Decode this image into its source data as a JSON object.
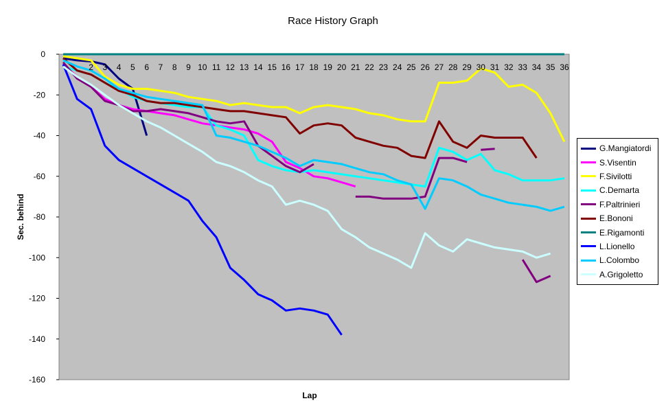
{
  "chart_data": {
    "type": "line",
    "title": "Race History Graph",
    "xlabel": "Lap",
    "ylabel": "Sec. behind",
    "ylim": [
      -160,
      0
    ],
    "xlim": [
      0,
      36
    ],
    "yticks": [
      0,
      -20,
      -40,
      -60,
      -80,
      -100,
      -120,
      -140,
      -160
    ],
    "xticks": [
      2,
      3,
      4,
      5,
      6,
      7,
      8,
      9,
      10,
      11,
      12,
      13,
      14,
      15,
      16,
      17,
      18,
      19,
      20,
      21,
      22,
      23,
      24,
      25,
      26,
      27,
      28,
      29,
      30,
      31,
      32,
      33,
      34,
      35,
      36
    ],
    "grid": false,
    "plot_background": "#c0c0c0",
    "legend_position": "right",
    "series": [
      {
        "name": "G.Mangiatordi",
        "color": "#000080",
        "points": [
          [
            0,
            -2
          ],
          [
            1,
            -3
          ],
          [
            2,
            -3.5
          ],
          [
            3,
            -5
          ],
          [
            4,
            -12
          ],
          [
            5,
            -17
          ],
          [
            6,
            -40
          ]
        ]
      },
      {
        "name": "S.Visentin",
        "color": "#ff00ff",
        "points": [
          [
            0,
            -5
          ],
          [
            1,
            -11
          ],
          [
            2,
            -16
          ],
          [
            3,
            -22
          ],
          [
            4,
            -25
          ],
          [
            5,
            -27
          ],
          [
            6,
            -28
          ],
          [
            7,
            -29
          ],
          [
            8,
            -30
          ],
          [
            9,
            -32
          ],
          [
            10,
            -34
          ],
          [
            11,
            -35
          ],
          [
            12,
            -36
          ],
          [
            13,
            -37
          ],
          [
            14,
            -39
          ],
          [
            15,
            -43
          ],
          [
            16,
            -53
          ],
          [
            17,
            -56
          ],
          [
            18,
            -60
          ],
          [
            19,
            -61
          ],
          [
            20,
            -63
          ],
          [
            21,
            -65
          ]
        ]
      },
      {
        "name": "F.Sivilotti",
        "color": "#ffff00",
        "points": [
          [
            0,
            -1
          ],
          [
            1,
            -2
          ],
          [
            2,
            -3
          ],
          [
            3,
            -11
          ],
          [
            4,
            -15
          ],
          [
            5,
            -17
          ],
          [
            6,
            -17
          ],
          [
            7,
            -18
          ],
          [
            8,
            -19
          ],
          [
            9,
            -21
          ],
          [
            10,
            -22
          ],
          [
            11,
            -23
          ],
          [
            12,
            -25
          ],
          [
            13,
            -24
          ],
          [
            14,
            -25
          ],
          [
            15,
            -26
          ],
          [
            16,
            -26
          ],
          [
            17,
            -29
          ],
          [
            18,
            -26
          ],
          [
            19,
            -25
          ],
          [
            20,
            -26
          ],
          [
            21,
            -27
          ],
          [
            22,
            -29
          ],
          [
            23,
            -30
          ],
          [
            24,
            -32
          ],
          [
            25,
            -33
          ],
          [
            26,
            -33
          ],
          [
            27,
            -14
          ],
          [
            28,
            -14
          ],
          [
            29,
            -13
          ],
          [
            30,
            -7
          ],
          [
            31,
            -9
          ],
          [
            32,
            -16
          ],
          [
            33,
            -15
          ],
          [
            34,
            -19
          ],
          [
            35,
            -29
          ],
          [
            36,
            -43
          ]
        ]
      },
      {
        "name": "C.Demarta",
        "color": "#00ffff",
        "points": [
          [
            0,
            -6
          ],
          [
            1,
            -8
          ],
          [
            2,
            -10
          ],
          [
            3,
            -14
          ],
          [
            4,
            -17
          ],
          [
            5,
            -21
          ],
          [
            6,
            -23
          ],
          [
            7,
            -24
          ],
          [
            8,
            -25
          ],
          [
            9,
            -26
          ],
          [
            10,
            -26
          ],
          [
            11,
            -35
          ],
          [
            12,
            -37
          ],
          [
            13,
            -40
          ],
          [
            14,
            -52
          ],
          [
            15,
            -55
          ],
          [
            16,
            -57
          ],
          [
            17,
            -58
          ],
          [
            18,
            -57
          ],
          [
            19,
            -58
          ],
          [
            20,
            -59
          ],
          [
            21,
            -60
          ],
          [
            22,
            -61
          ],
          [
            23,
            -62
          ],
          [
            24,
            -63
          ],
          [
            25,
            -64
          ],
          [
            26,
            -65
          ],
          [
            27,
            -46
          ],
          [
            28,
            -48
          ],
          [
            29,
            -52
          ],
          [
            30,
            -49
          ],
          [
            31,
            -57
          ],
          [
            32,
            -59
          ],
          [
            33,
            -62
          ],
          [
            34,
            -62
          ],
          [
            35,
            -62
          ],
          [
            36,
            -61
          ]
        ]
      },
      {
        "name": "F.Paltrinieri",
        "color": "#800080",
        "segments": [
          [
            [
              0,
              -4
            ],
            [
              1,
              -12
            ],
            [
              2,
              -16
            ],
            [
              3,
              -23
            ],
            [
              4,
              -25
            ],
            [
              5,
              -28
            ],
            [
              6,
              -28
            ],
            [
              7,
              -27
            ],
            [
              8,
              -28
            ],
            [
              9,
              -29
            ],
            [
              10,
              -31
            ],
            [
              11,
              -33
            ],
            [
              12,
              -34
            ],
            [
              13,
              -33
            ],
            [
              14,
              -45
            ],
            [
              15,
              -50
            ],
            [
              16,
              -55
            ],
            [
              17,
              -58
            ],
            [
              18,
              -54
            ]
          ],
          [
            [
              21,
              -70
            ],
            [
              22,
              -70
            ],
            [
              23,
              -71
            ],
            [
              24,
              -71
            ],
            [
              25,
              -71
            ],
            [
              26,
              -70
            ],
            [
              27,
              -51
            ],
            [
              28,
              -51
            ],
            [
              29,
              -53
            ]
          ],
          [
            [
              30,
              -47
            ],
            [
              31,
              -46.5
            ]
          ],
          [
            [
              33,
              -101
            ],
            [
              34,
              -112
            ],
            [
              35,
              -109
            ]
          ]
        ]
      },
      {
        "name": "E.Bononi",
        "color": "#800000",
        "points": [
          [
            0,
            -2
          ],
          [
            1,
            -8
          ],
          [
            2,
            -10
          ],
          [
            3,
            -14
          ],
          [
            4,
            -18
          ],
          [
            5,
            -20
          ],
          [
            6,
            -23
          ],
          [
            7,
            -24
          ],
          [
            8,
            -24
          ],
          [
            9,
            -25
          ],
          [
            10,
            -26
          ],
          [
            11,
            -27
          ],
          [
            12,
            -28
          ],
          [
            13,
            -28
          ],
          [
            14,
            -29
          ],
          [
            15,
            -30
          ],
          [
            16,
            -31
          ],
          [
            17,
            -39
          ],
          [
            18,
            -35
          ],
          [
            19,
            -34
          ],
          [
            20,
            -35
          ],
          [
            21,
            -41
          ],
          [
            22,
            -43
          ],
          [
            23,
            -45
          ],
          [
            24,
            -46
          ],
          [
            25,
            -50
          ],
          [
            26,
            -51
          ],
          [
            27,
            -33
          ],
          [
            28,
            -43
          ],
          [
            29,
            -46
          ],
          [
            30,
            -40
          ],
          [
            31,
            -41
          ],
          [
            32,
            -41
          ],
          [
            33,
            -41
          ],
          [
            34,
            -51
          ]
        ]
      },
      {
        "name": "E.Rigamonti",
        "color": "#008080",
        "points": [
          [
            0,
            0
          ],
          [
            36,
            0
          ]
        ]
      },
      {
        "name": "L.Lionello",
        "color": "#0000ff",
        "points": [
          [
            0,
            -5
          ],
          [
            1,
            -22
          ],
          [
            2,
            -27
          ],
          [
            3,
            -45
          ],
          [
            4,
            -52
          ],
          [
            5,
            -56
          ],
          [
            6,
            -60
          ],
          [
            7,
            -64
          ],
          [
            8,
            -68
          ],
          [
            9,
            -72
          ],
          [
            10,
            -82
          ],
          [
            11,
            -90
          ],
          [
            12,
            -105
          ],
          [
            13,
            -111
          ],
          [
            14,
            -118
          ],
          [
            15,
            -121
          ],
          [
            16,
            -126
          ],
          [
            17,
            -125
          ],
          [
            18,
            -126
          ],
          [
            19,
            -128
          ],
          [
            20,
            -138
          ]
        ]
      },
      {
        "name": "L.Colombo",
        "color": "#00ccff",
        "points": [
          [
            0,
            -3
          ],
          [
            1,
            -6
          ],
          [
            2,
            -8
          ],
          [
            3,
            -12
          ],
          [
            4,
            -17
          ],
          [
            5,
            -19
          ],
          [
            6,
            -21
          ],
          [
            7,
            -22
          ],
          [
            8,
            -23
          ],
          [
            9,
            -24
          ],
          [
            10,
            -25
          ],
          [
            11,
            -40
          ],
          [
            12,
            -41
          ],
          [
            13,
            -43
          ],
          [
            14,
            -45
          ],
          [
            15,
            -48
          ],
          [
            16,
            -51
          ],
          [
            17,
            -55
          ],
          [
            18,
            -52
          ],
          [
            19,
            -53
          ],
          [
            20,
            -54
          ],
          [
            21,
            -56
          ],
          [
            22,
            -58
          ],
          [
            23,
            -59
          ],
          [
            24,
            -62
          ],
          [
            25,
            -64
          ],
          [
            26,
            -76
          ],
          [
            27,
            -61
          ],
          [
            28,
            -62
          ],
          [
            29,
            -65
          ],
          [
            30,
            -69
          ],
          [
            31,
            -71
          ],
          [
            32,
            -73
          ],
          [
            33,
            -74
          ],
          [
            34,
            -75
          ],
          [
            35,
            -77
          ],
          [
            36,
            -75
          ]
        ]
      },
      {
        "name": "A.Grigoletto",
        "color": "#ccffff",
        "points": [
          [
            0,
            -6
          ],
          [
            1,
            -11
          ],
          [
            2,
            -15
          ],
          [
            3,
            -20
          ],
          [
            4,
            -25
          ],
          [
            5,
            -29
          ],
          [
            6,
            -33
          ],
          [
            7,
            -36
          ],
          [
            8,
            -40
          ],
          [
            9,
            -44
          ],
          [
            10,
            -48
          ],
          [
            11,
            -53
          ],
          [
            12,
            -55
          ],
          [
            13,
            -58
          ],
          [
            14,
            -62
          ],
          [
            15,
            -65
          ],
          [
            16,
            -74
          ],
          [
            17,
            -72
          ],
          [
            18,
            -74
          ],
          [
            19,
            -77
          ],
          [
            20,
            -86
          ],
          [
            21,
            -90
          ],
          [
            22,
            -95
          ],
          [
            23,
            -98
          ],
          [
            24,
            -101
          ],
          [
            25,
            -105
          ],
          [
            26,
            -88
          ],
          [
            27,
            -94
          ],
          [
            28,
            -97
          ],
          [
            29,
            -91
          ],
          [
            30,
            -93
          ],
          [
            31,
            -95
          ],
          [
            32,
            -96
          ],
          [
            33,
            -97
          ],
          [
            34,
            -100
          ],
          [
            35,
            -98
          ]
        ]
      }
    ]
  }
}
